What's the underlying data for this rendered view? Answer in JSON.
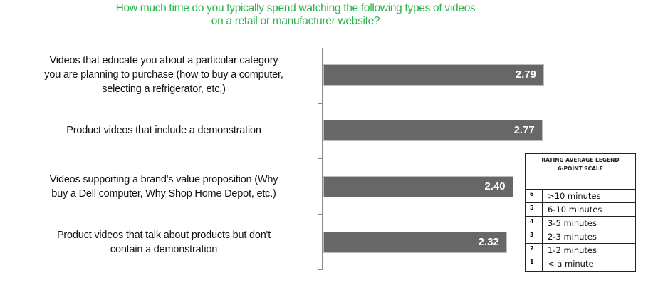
{
  "chart_data": {
    "type": "bar",
    "orientation": "horizontal",
    "title": "How much time do you typically spend watching the following types of videos on a retail or manufacturer website?",
    "title_lines": [
      "How much time do you typically spend watching the following types of videos",
      "on a retail or manufacturer website?"
    ],
    "categories": [
      "Videos that educate you about a particular category you are planning to purchase (how to buy a computer, selecting a refrigerator, etc.)",
      "Product videos that include a demonstration",
      "Videos supporting a brand's value proposition (Why buy a Dell computer, Why Shop Home Depot, etc.)",
      "Product videos that talk about  products but don't contain a demonstration"
    ],
    "values": [
      2.79,
      2.77,
      2.4,
      2.32
    ],
    "value_labels": [
      "2.79",
      "2.77",
      "2.40",
      "2.32"
    ],
    "xlabel": "",
    "ylabel": "",
    "grid": false,
    "bar_color": "#676767",
    "title_color": "#2bb24c",
    "legend": {
      "title_line1": "RATING AVERAGE LEGEND",
      "title_line2": "6-POINT SCALE",
      "rows": [
        {
          "score": "6",
          "label": ">10 minutes"
        },
        {
          "score": "5",
          "label": "6-10 minutes"
        },
        {
          "score": "4",
          "label": "3-5 minutes"
        },
        {
          "score": "3",
          "label": "2-3 minutes"
        },
        {
          "score": "2",
          "label": "1-2 minutes"
        },
        {
          "score": "1",
          "label": "< a minute"
        }
      ],
      "position": "bottom-right"
    }
  },
  "labels": [
    [
      "Videos that educate you about a particular category",
      "you are planning to purchase (how to buy a computer,",
      "selecting a refrigerator, etc.)"
    ],
    [
      "Product videos that include a demonstration"
    ],
    [
      "Videos supporting a brand's value proposition (Why",
      "buy a Dell computer, Why Shop Home Depot, etc.)"
    ],
    [
      "Product videos that talk about  products but don't",
      "contain a demonstration"
    ]
  ]
}
